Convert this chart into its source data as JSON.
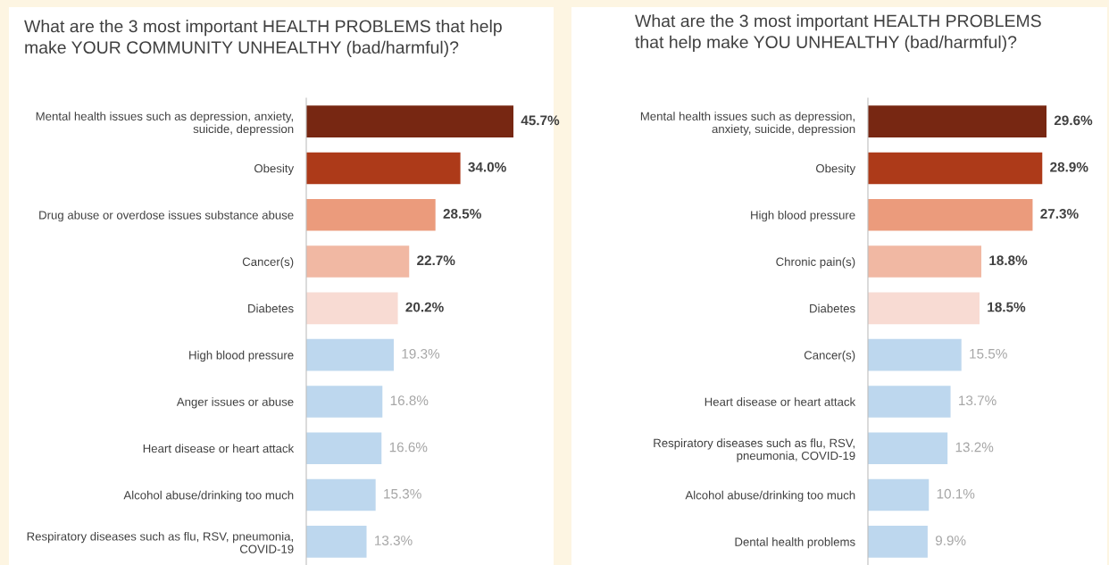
{
  "chart_data": [
    {
      "type": "bar",
      "orientation": "horizontal",
      "title": "What are the 3 most important HEALTH PROBLEMS that help\nmake YOUR COMMUNITY UNHEALTHY (bad/harmful)?",
      "categories": [
        "Mental health issues such as depression, anxiety,\nsuicide, depression",
        "Obesity",
        "Drug abuse or overdose issues substance abuse",
        "Cancer(s)",
        "Diabetes",
        "High blood pressure",
        "Anger issues or abuse",
        "Heart disease or heart attack",
        "Alcohol abuse/drinking too much",
        "Respiratory diseases such as flu, RSV, pneumonia,\nCOVID-19"
      ],
      "values": [
        45.7,
        34.0,
        28.5,
        22.7,
        20.2,
        19.3,
        16.8,
        16.6,
        15.3,
        13.3
      ],
      "value_labels": [
        "45.7%",
        "34.0%",
        "28.5%",
        "22.7%",
        "20.2%",
        "19.3%",
        "16.8%",
        "16.6%",
        "15.3%",
        "13.3%"
      ],
      "colors": [
        "#772712",
        "#ad3a19",
        "#eb9b7c",
        "#f1b8a3",
        "#f8dbd3",
        "#bdd7ee",
        "#bdd7ee",
        "#bdd7ee",
        "#bdd7ee",
        "#bdd7ee"
      ]
    },
    {
      "type": "bar",
      "orientation": "horizontal",
      "title": "What are the 3 most important HEALTH PROBLEMS\nthat help make YOU UNHEALTHY (bad/harmful)?",
      "categories": [
        "Mental health issues such as depression,\nanxiety, suicide, depression",
        "Obesity",
        "High blood pressure",
        "Chronic pain(s)",
        "Diabetes",
        "Cancer(s)",
        "Heart disease or heart attack",
        "Respiratory diseases such as flu, RSV,\npneumonia, COVID-19",
        "Alcohol abuse/drinking too much",
        "Dental health problems"
      ],
      "values": [
        29.6,
        28.9,
        27.3,
        18.8,
        18.5,
        15.5,
        13.7,
        13.2,
        10.1,
        9.9
      ],
      "value_labels": [
        "29.6%",
        "28.9%",
        "27.3%",
        "18.8%",
        "18.5%",
        "15.5%",
        "13.7%",
        "13.2%",
        "10.1%",
        "9.9%"
      ],
      "colors": [
        "#772712",
        "#ad3a19",
        "#eb9b7c",
        "#f1b8a3",
        "#f8dbd3",
        "#bdd7ee",
        "#bdd7ee",
        "#bdd7ee",
        "#bdd7ee",
        "#bdd7ee"
      ]
    }
  ]
}
